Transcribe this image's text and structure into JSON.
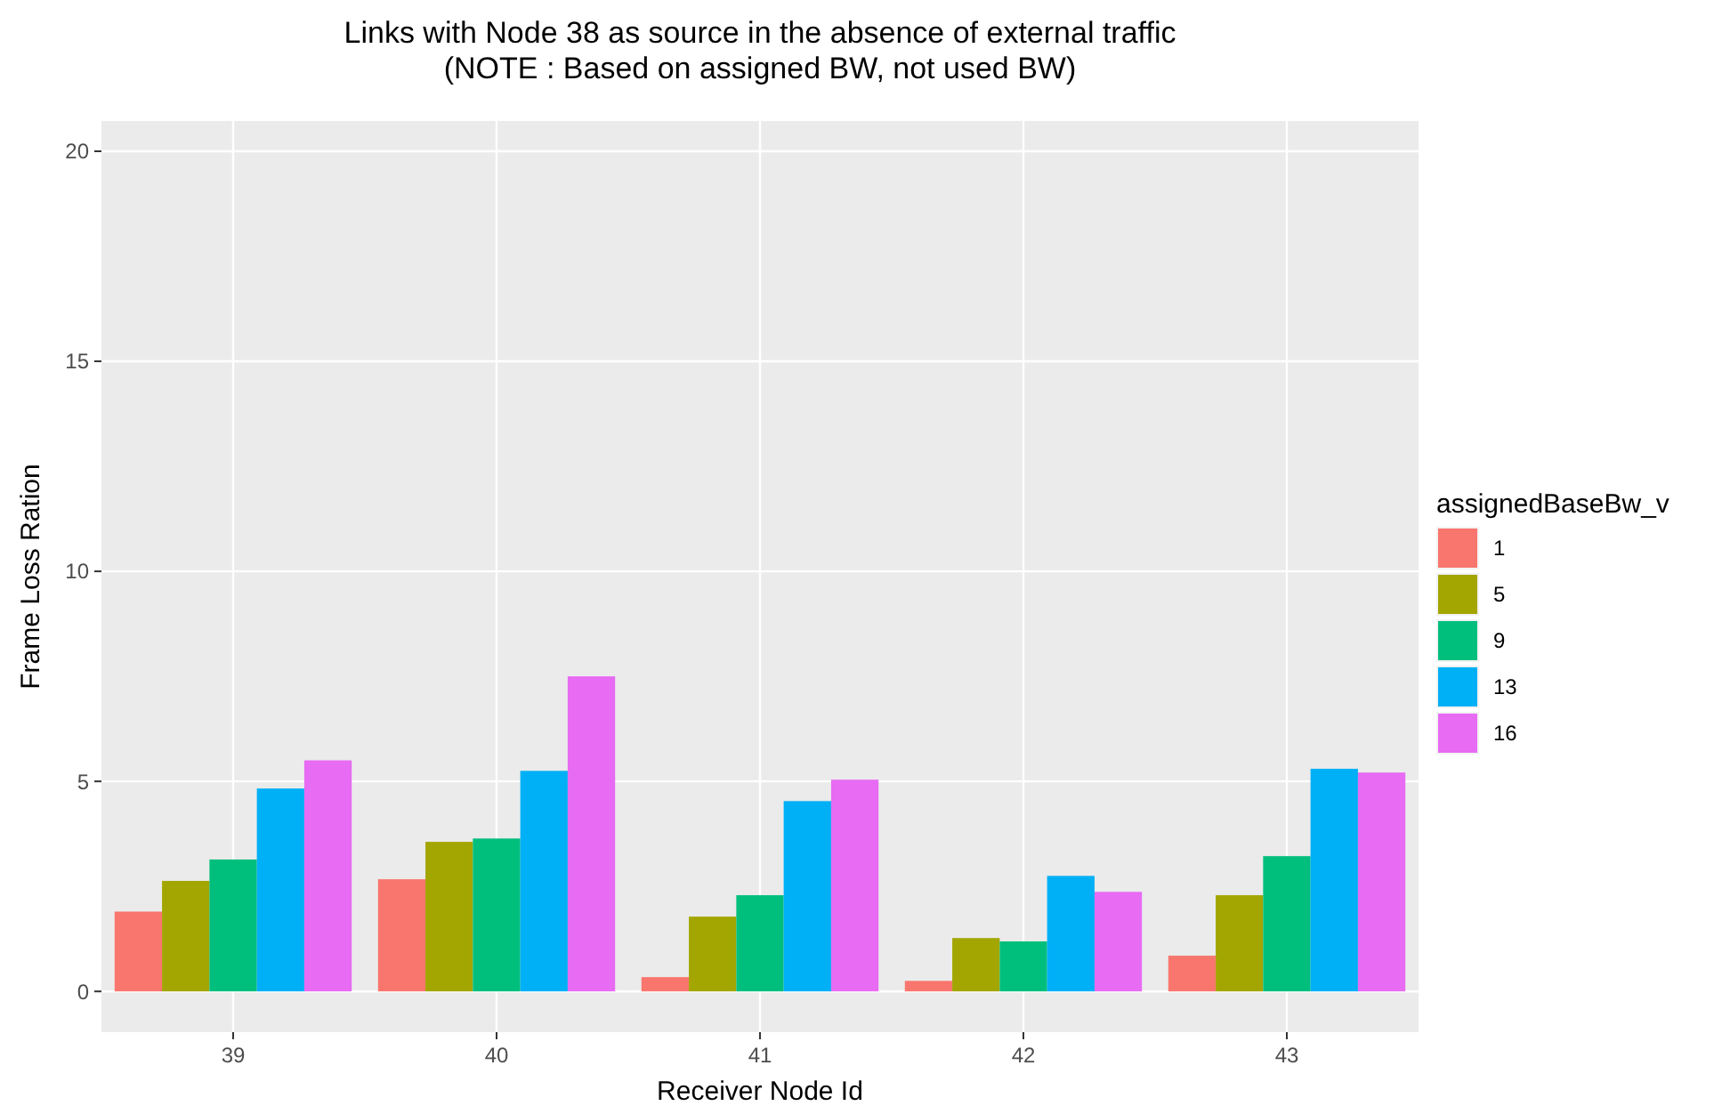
{
  "chart_data": {
    "type": "bar",
    "title": "Links with Node 38 as source in the absence of external traffic\n(NOTE : Based on assigned BW, not used BW)",
    "xlabel": "Receiver Node Id",
    "ylabel": "Frame Loss Ration",
    "legend_title": "assignedBaseBw_v",
    "categories": [
      "39",
      "40",
      "41",
      "42",
      "43"
    ],
    "series": [
      {
        "name": "1",
        "color": "#f8766d",
        "values": [
          1.9,
          2.67,
          0.34,
          0.25,
          0.85
        ]
      },
      {
        "name": "5",
        "color": "#a3a500",
        "values": [
          2.63,
          3.56,
          1.78,
          1.27,
          2.29
        ]
      },
      {
        "name": "9",
        "color": "#00bf7d",
        "values": [
          3.14,
          3.64,
          2.29,
          1.19,
          3.22
        ]
      },
      {
        "name": "13",
        "color": "#00b0f6",
        "values": [
          4.83,
          5.25,
          4.53,
          2.75,
          5.3
        ]
      },
      {
        "name": "16",
        "color": "#e76bf3",
        "values": [
          5.5,
          7.5,
          5.04,
          2.37,
          5.21
        ]
      }
    ],
    "ylim": [
      -0.97,
      20.72
    ],
    "yticks": [
      0,
      5,
      10,
      15,
      20
    ],
    "grid": true,
    "legend": "right"
  }
}
